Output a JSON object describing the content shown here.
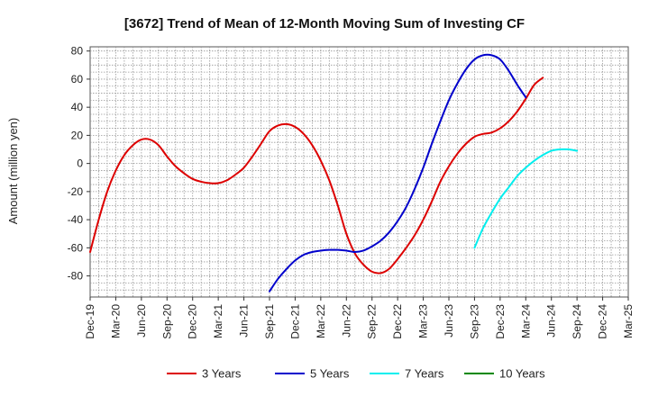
{
  "chart_data": {
    "type": "line",
    "title": "[3672]  Trend of Mean of 12-Month Moving Sum of Investing CF",
    "xlabel": "",
    "ylabel": "Amount (million yen)",
    "ylim": [
      -95,
      83
    ],
    "yticks": [
      80,
      60,
      40,
      20,
      0,
      -20,
      -40,
      -60,
      -80
    ],
    "ytick_labels": [
      "80",
      "60",
      "40",
      "20",
      "0",
      "-20",
      "-40",
      "-60",
      "-80"
    ],
    "x_range": [
      "2019-12",
      "2025-03"
    ],
    "xtick_labels": [
      "Dec-19",
      "Mar-20",
      "Jun-20",
      "Sep-20",
      "Dec-20",
      "Mar-21",
      "Jun-21",
      "Sep-21",
      "Dec-21",
      "Mar-22",
      "Jun-22",
      "Sep-22",
      "Dec-22",
      "Mar-23",
      "Jun-23",
      "Sep-23",
      "Dec-23",
      "Mar-24",
      "Jun-24",
      "Sep-24",
      "Dec-24",
      "Mar-25"
    ],
    "grid": true,
    "legend_position": "bottom",
    "series": [
      {
        "name": "3 Years",
        "color": "#dd0000",
        "start": "2019-12",
        "values": [
          -63,
          -40,
          -20,
          -5,
          6,
          13,
          17,
          17,
          13,
          5,
          -2,
          -7,
          -11,
          -13,
          -14,
          -14,
          -12,
          -8,
          -3,
          5,
          14,
          23,
          27,
          28,
          26,
          21,
          13,
          2,
          -12,
          -30,
          -50,
          -64,
          -72,
          -77,
          -78,
          -75,
          -68,
          -60,
          -51,
          -40,
          -27,
          -13,
          -2,
          7,
          14,
          19,
          21,
          22,
          25,
          30,
          37,
          46,
          56,
          61
        ]
      },
      {
        "name": "5 Years",
        "color": "#0000cc",
        "start": "2021-09",
        "values": [
          -91,
          -82,
          -75,
          -69,
          -65,
          -63,
          -62,
          -61.5,
          -61.5,
          -62,
          -63,
          -62,
          -59,
          -55,
          -49,
          -41,
          -31,
          -18,
          -3,
          14,
          30,
          45,
          57,
          67,
          74,
          77,
          77,
          74,
          66,
          56,
          47
        ]
      },
      {
        "name": "7 Years",
        "color": "#00eeee",
        "start": "2023-09",
        "values": [
          -60,
          -46,
          -35,
          -25,
          -17,
          -9,
          -3,
          2,
          6,
          9,
          10,
          10,
          9
        ]
      },
      {
        "name": "10 Years",
        "color": "#008800",
        "start": "2019-12",
        "values": []
      }
    ]
  }
}
